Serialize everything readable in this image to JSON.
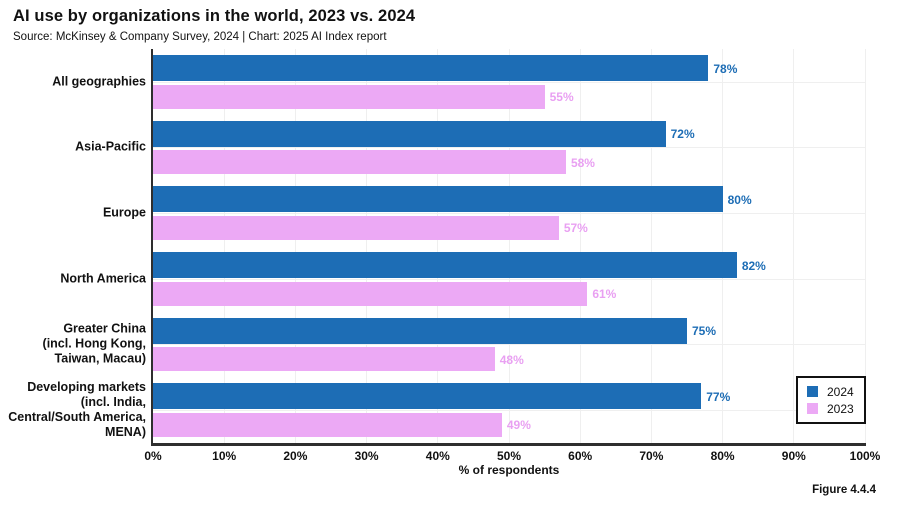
{
  "header": {
    "title": "AI use by organizations in the world, 2023 vs. 2024",
    "subtitle": "Source: McKinsey & Company Survey, 2024 | Chart: 2025 AI Index report"
  },
  "figure_label": "Figure 4.4.4",
  "colors": {
    "bar_2024": "#1D6DB5",
    "bar_2023": "#ECA9F5",
    "value_label_2024": "#1D6DB5",
    "value_label_2023": "#E9A0F2",
    "axis": "#2E2E2E",
    "grid": "#EFEFEF",
    "text": "#111111"
  },
  "chart_data": {
    "type": "bar",
    "orientation": "horizontal",
    "title": "AI use by organizations in the world, 2023 vs. 2024",
    "xlabel": "% of respondents",
    "xlim": [
      0,
      100
    ],
    "xtick_values": [
      0,
      10,
      20,
      30,
      40,
      50,
      60,
      70,
      80,
      90,
      100
    ],
    "xtick_labels": [
      "0%",
      "10%",
      "20%",
      "30%",
      "40%",
      "50%",
      "60%",
      "70%",
      "80%",
      "90%",
      "100%"
    ],
    "grid": true,
    "legend_position": "lower right",
    "categories": [
      {
        "lines": [
          "All geographies"
        ]
      },
      {
        "lines": [
          "Asia-Pacific"
        ]
      },
      {
        "lines": [
          "Europe"
        ]
      },
      {
        "lines": [
          "North America"
        ]
      },
      {
        "lines": [
          "Greater China",
          "(incl. Hong Kong,",
          "Taiwan, Macau)"
        ]
      },
      {
        "lines": [
          "Developing markets",
          "(incl. India,",
          "Central/South America,",
          "MENA)"
        ]
      }
    ],
    "series": [
      {
        "name": "2024",
        "color": "#1D6DB5",
        "values": [
          78,
          72,
          80,
          82,
          75,
          77
        ],
        "value_labels": [
          "78%",
          "72%",
          "80%",
          "82%",
          "75%",
          "77%"
        ]
      },
      {
        "name": "2023",
        "color": "#ECA9F5",
        "values": [
          55,
          58,
          57,
          61,
          48,
          49
        ],
        "value_labels": [
          "55%",
          "58%",
          "57%",
          "61%",
          "48%",
          "49%"
        ]
      }
    ]
  }
}
